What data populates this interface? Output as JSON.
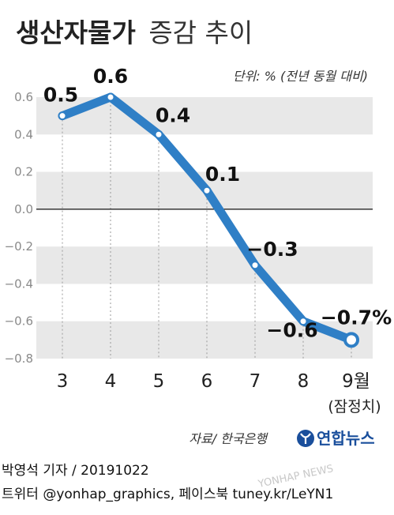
{
  "header": {
    "title_main": "생산자물가",
    "title_sub": "증감 추이",
    "unit_note": "단위: % (전년 동월 대비)"
  },
  "footer": {
    "source": "자료/ 한국은행",
    "logo_text": "연합뉴스",
    "byline": "박영석 기자 /  20191022",
    "social": "트위터 @yonhap_graphics, 페이스북 tuney.kr/LeYN1",
    "watermark": "YONHAP NEWS"
  },
  "colors": {
    "line": "#2f7fc6",
    "band": "#e8e8e8",
    "logo": "#1a4f9c"
  },
  "chart_data": {
    "type": "line",
    "categories": [
      "3",
      "4",
      "5",
      "6",
      "7",
      "8",
      "9월"
    ],
    "last_category_note": "(잠정치)",
    "values": [
      0.5,
      0.6,
      0.4,
      0.1,
      -0.3,
      -0.6,
      -0.7
    ],
    "data_labels": [
      "0.5",
      "0.6",
      "0.4",
      "0.1",
      "−0.3",
      "−0.6",
      "−0.7%"
    ],
    "yticks": [
      "0.6",
      "0.4",
      "0.2",
      "0.0",
      "−0.2",
      "−0.4",
      "−0.6",
      "−0.8"
    ],
    "ytick_values": [
      0.6,
      0.4,
      0.2,
      0.0,
      -0.2,
      -0.4,
      -0.6,
      -0.8
    ],
    "ylim": [
      -0.8,
      0.6
    ],
    "grid": "alternating horizontal bands",
    "zero_line": true
  }
}
